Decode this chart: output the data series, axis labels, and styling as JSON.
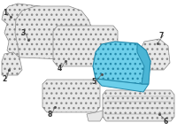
{
  "bg_color": "#ffffff",
  "part_color_highlight": "#6dcfea",
  "part_color_normal": "#e8e8e8",
  "part_outline": "#888888",
  "part_outline_highlight": "#2288aa",
  "label_color": "#333333",
  "label_fontsize": 5.5,
  "dot_color": "#555555",
  "line_color": "#555555",
  "hatch_color": "#aaaaaa",
  "labels": [
    "1",
    "2",
    "3",
    "4",
    "5",
    "6",
    "7",
    "8"
  ],
  "layout": "diagonal_exploded"
}
